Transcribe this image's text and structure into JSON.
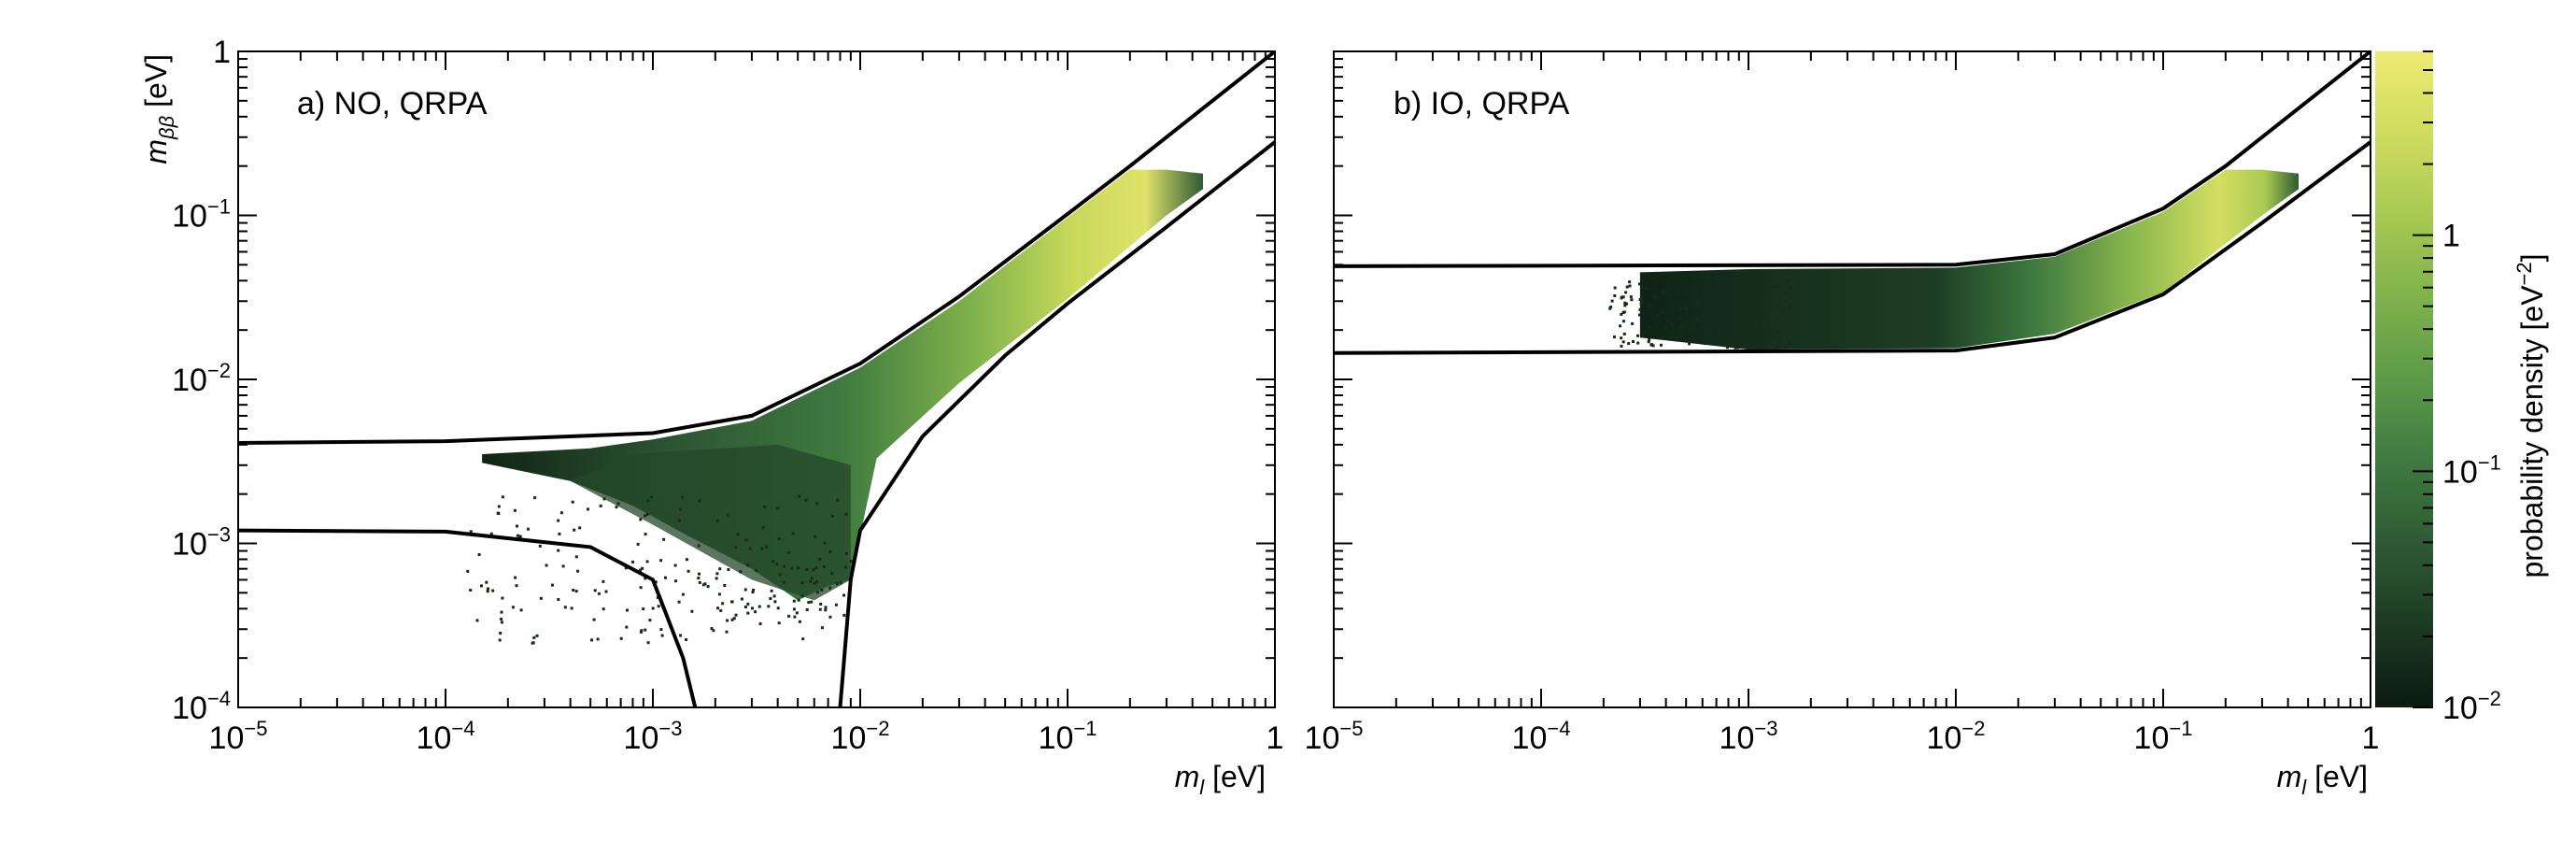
{
  "chart_data": [
    {
      "type": "heatmap",
      "panel_label": "a) NO, QRPA",
      "xlabel": "m_l [eV]",
      "ylabel": "m_ββ [eV]",
      "xscale": "log",
      "yscale": "log",
      "xlim": [
        1e-05,
        1
      ],
      "ylim": [
        0.0001,
        1
      ],
      "x_tick_labels": [
        "10^-5",
        "10^-4",
        "10^-3",
        "10^-2",
        "10^-1",
        "1"
      ],
      "y_tick_labels": [
        "10^-4",
        "10^-3",
        "10^-2",
        "10^-1",
        "1"
      ],
      "boundary_upper": [
        [
          1e-05,
          0.0041
        ],
        [
          0.0001,
          0.0042
        ],
        [
          0.001,
          0.0047
        ],
        [
          0.003,
          0.006
        ],
        [
          0.01,
          0.0125
        ],
        [
          0.03,
          0.032
        ],
        [
          0.1,
          0.102
        ],
        [
          0.2,
          0.2
        ],
        [
          1,
          1
        ]
      ],
      "boundary_lower_left": [
        [
          1e-05,
          0.0012
        ],
        [
          0.0001,
          0.00118
        ],
        [
          0.0005,
          0.00095
        ],
        [
          0.001,
          0.0006
        ],
        [
          0.0014,
          0.0002
        ],
        [
          0.0016,
          0.0001
        ]
      ],
      "boundary_lower_right": [
        [
          0.008,
          0.0001
        ],
        [
          0.009,
          0.0006
        ],
        [
          0.01,
          0.0012
        ],
        [
          0.02,
          0.0045
        ],
        [
          0.05,
          0.014
        ],
        [
          0.1,
          0.029
        ],
        [
          0.3,
          0.085
        ],
        [
          1,
          0.28
        ]
      ],
      "density_region": "filled band between boundaries for m_l from ~2e-4 to ~0.45 eV"
    },
    {
      "type": "heatmap",
      "panel_label": "b) IO, QRPA",
      "xlabel": "m_l [eV]",
      "ylabel": "",
      "xscale": "log",
      "yscale": "log",
      "xlim": [
        1e-05,
        1
      ],
      "ylim": [
        0.0001,
        1
      ],
      "x_tick_labels": [
        "10^-5",
        "10^-4",
        "10^-3",
        "10^-2",
        "10^-1",
        "1"
      ],
      "boundary_upper": [
        [
          1e-05,
          0.049
        ],
        [
          0.01,
          0.05
        ],
        [
          0.03,
          0.058
        ],
        [
          0.1,
          0.11
        ],
        [
          0.2,
          0.2
        ],
        [
          1,
          1
        ]
      ],
      "boundary_lower": [
        [
          1e-05,
          0.0145
        ],
        [
          0.01,
          0.015
        ],
        [
          0.03,
          0.018
        ],
        [
          0.1,
          0.033
        ],
        [
          0.3,
          0.09
        ],
        [
          1,
          0.28
        ]
      ],
      "density_region": "filled band between boundaries for m_l from ~3e-4 to ~0.45 eV"
    }
  ],
  "colorbar": {
    "label": "probability density [eV^-2]",
    "scale": "log",
    "range": [
      0.01,
      6
    ],
    "tick_labels": [
      "10^-2",
      "10^-1",
      "1"
    ],
    "colors": [
      "#0b1a10",
      "#1c3a22",
      "#2e5a34",
      "#3f7a40",
      "#5c9a48",
      "#7fb24c",
      "#a8c952",
      "#cfdc5e",
      "#eeeb73"
    ]
  }
}
